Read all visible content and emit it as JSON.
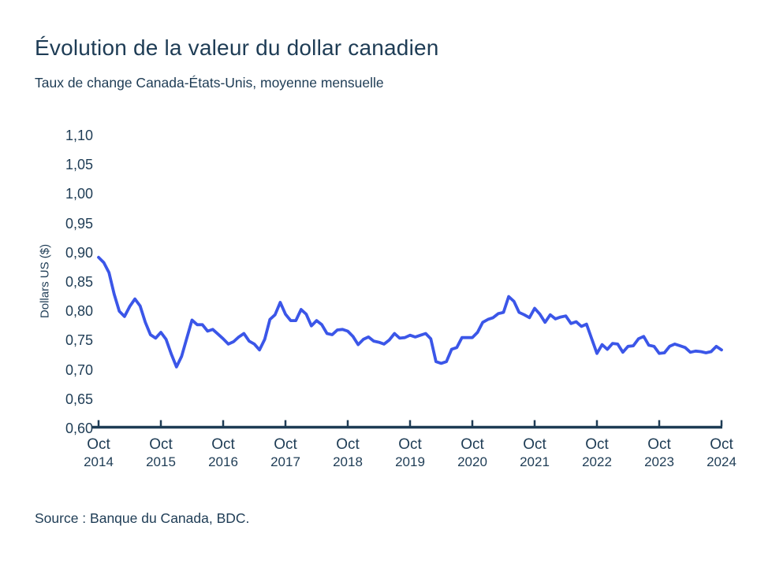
{
  "header": {
    "title": "Évolution de la valeur du dollar canadien",
    "subtitle": "Taux de change Canada-États-Unis, moyenne mensuelle"
  },
  "footer": {
    "source": "Source : Banque du Canada, BDC."
  },
  "colors": {
    "line": "#3B56E8",
    "text": "#1E3C55",
    "axis": "#1E3C55",
    "background": "#FFFFFF"
  },
  "chart_data": {
    "type": "line",
    "title": "Évolution de la valeur du dollar canadien",
    "subtitle": "Taux de change Canada-États-Unis, moyenne mensuelle",
    "xlabel": "",
    "ylabel": "Dollars US ($)",
    "ylim": [
      0.6,
      1.1
    ],
    "grid": false,
    "legend": "none",
    "frequency": "monthly",
    "x_start": "Oct 2014",
    "x_end": "Oct 2024",
    "y_tick_labels": [
      "1,10",
      "1,05",
      "1,00",
      "0,95",
      "0,90",
      "0,85",
      "0,80",
      "0,75",
      "0,70",
      "0,65",
      "0,60"
    ],
    "y_tick_values": [
      1.1,
      1.05,
      1.0,
      0.95,
      0.9,
      0.85,
      0.8,
      0.75,
      0.7,
      0.65,
      0.6
    ],
    "x_tick_labels": [
      [
        "Oct",
        "2014"
      ],
      [
        "Oct",
        "2015"
      ],
      [
        "Oct",
        "2016"
      ],
      [
        "Oct",
        "2017"
      ],
      [
        "Oct",
        "2018"
      ],
      [
        "Oct",
        "2019"
      ],
      [
        "Oct",
        "2020"
      ],
      [
        "Oct",
        "2021"
      ],
      [
        "Oct",
        "2022"
      ],
      [
        "Oct",
        "2023"
      ],
      [
        "Oct",
        "2024"
      ]
    ],
    "x_tick_month_indices": [
      0,
      12,
      24,
      36,
      48,
      60,
      72,
      84,
      96,
      108,
      120
    ],
    "values": [
      0.892,
      0.883,
      0.866,
      0.829,
      0.8,
      0.791,
      0.808,
      0.821,
      0.809,
      0.781,
      0.76,
      0.754,
      0.764,
      0.752,
      0.727,
      0.705,
      0.723,
      0.754,
      0.785,
      0.777,
      0.777,
      0.766,
      0.769,
      0.761,
      0.753,
      0.744,
      0.748,
      0.756,
      0.762,
      0.749,
      0.744,
      0.734,
      0.752,
      0.786,
      0.794,
      0.815,
      0.795,
      0.784,
      0.784,
      0.803,
      0.795,
      0.775,
      0.784,
      0.777,
      0.762,
      0.76,
      0.768,
      0.769,
      0.766,
      0.757,
      0.743,
      0.752,
      0.756,
      0.749,
      0.747,
      0.744,
      0.751,
      0.762,
      0.754,
      0.755,
      0.759,
      0.756,
      0.759,
      0.762,
      0.753,
      0.714,
      0.711,
      0.714,
      0.735,
      0.738,
      0.755,
      0.755,
      0.755,
      0.764,
      0.781,
      0.786,
      0.789,
      0.796,
      0.798,
      0.825,
      0.817,
      0.798,
      0.794,
      0.789,
      0.805,
      0.795,
      0.781,
      0.794,
      0.787,
      0.79,
      0.792,
      0.779,
      0.782,
      0.774,
      0.778,
      0.753,
      0.728,
      0.743,
      0.735,
      0.745,
      0.744,
      0.73,
      0.74,
      0.741,
      0.753,
      0.757,
      0.742,
      0.74,
      0.728,
      0.729,
      0.74,
      0.744,
      0.741,
      0.738,
      0.73,
      0.732,
      0.731,
      0.729,
      0.731,
      0.74,
      0.734
    ]
  }
}
